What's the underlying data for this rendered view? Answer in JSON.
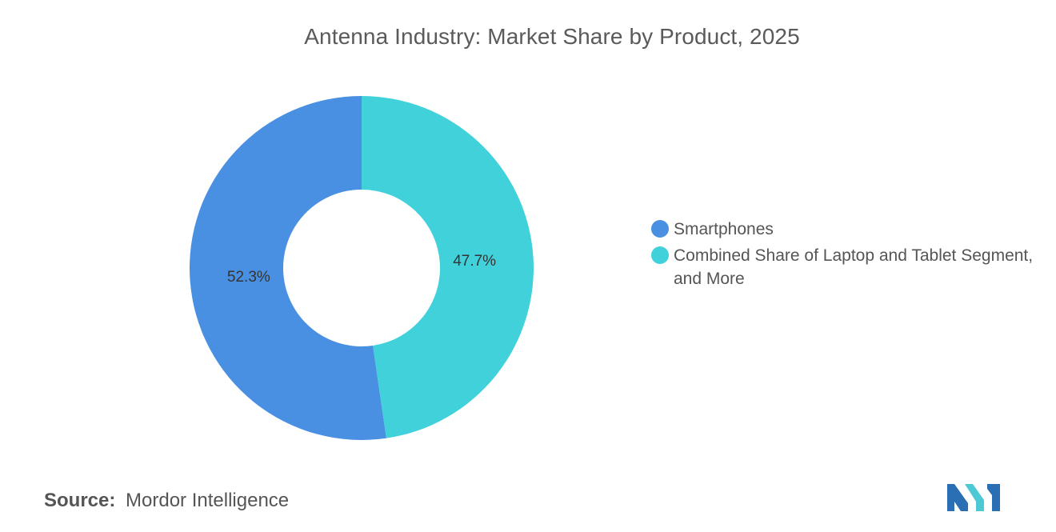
{
  "title": "Antenna Industry: Market Share by Product, 2025",
  "chart_data": {
    "type": "pie",
    "variant": "donut",
    "title": "Antenna Industry: Market Share by Product, 2025",
    "categories": [
      "Smartphones",
      "Combined Share of Laptop and Tablet Segment, and More"
    ],
    "values": [
      52.3,
      47.7
    ],
    "data_labels": [
      "52.3%",
      "47.7%"
    ],
    "colors": [
      "#4a90e2",
      "#40d1db"
    ],
    "legend_position": "right"
  },
  "legend": [
    {
      "label": "Smartphones",
      "color": "#4a90e2"
    },
    {
      "label": "Combined Share of Laptop and Tablet Segment, and More",
      "color": "#40d1db"
    }
  ],
  "source": {
    "key": "Source:",
    "value": "Mordor Intelligence"
  },
  "logo": {
    "icon": "mordor-intelligence-logo-icon",
    "colors": [
      "#2a6fb4",
      "#4dc9d6"
    ]
  }
}
